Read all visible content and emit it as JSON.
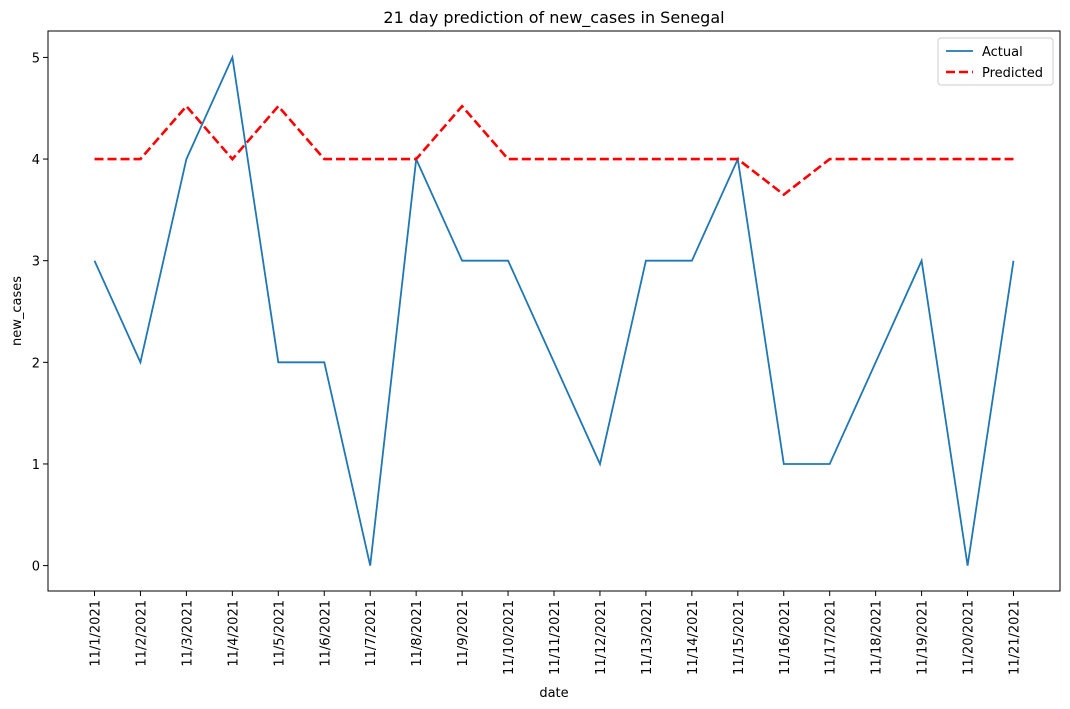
{
  "chart_data": {
    "type": "line",
    "title": "21 day prediction of new_cases in Senegal",
    "xlabel": "date",
    "ylabel": "new_cases",
    "categories": [
      "11/1/2021",
      "11/2/2021",
      "11/3/2021",
      "11/4/2021",
      "11/5/2021",
      "11/6/2021",
      "11/7/2021",
      "11/8/2021",
      "11/9/2021",
      "11/10/2021",
      "11/11/2021",
      "11/12/2021",
      "11/13/2021",
      "11/14/2021",
      "11/15/2021",
      "11/16/2021",
      "11/17/2021",
      "11/18/2021",
      "11/19/2021",
      "11/20/2021",
      "11/21/2021"
    ],
    "yticks": [
      "0",
      "1",
      "2",
      "3",
      "4",
      "5"
    ],
    "ylim": [
      -0.25,
      5.26
    ],
    "grid": false,
    "legend_position": "top-right",
    "series": [
      {
        "name": "Actual",
        "color": "#1f77b4",
        "style": "solid",
        "values": [
          3,
          2,
          4,
          5,
          2,
          2,
          0,
          4,
          3,
          3,
          2,
          1,
          3,
          3,
          4,
          1,
          1,
          2,
          3,
          0,
          3
        ]
      },
      {
        "name": "Predicted",
        "color": "#ff0000",
        "style": "dashed",
        "values": [
          4,
          4,
          4.52,
          4,
          4.52,
          4,
          4,
          4,
          4.52,
          4,
          4,
          4,
          4,
          4,
          4,
          3.65,
          4,
          4,
          4,
          4,
          4
        ]
      }
    ]
  }
}
